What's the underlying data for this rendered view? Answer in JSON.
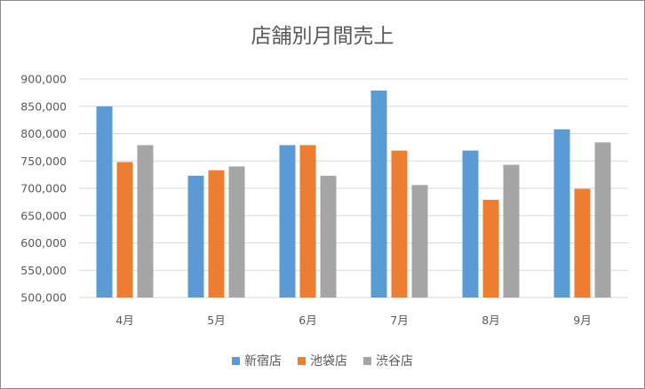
{
  "chart_data": {
    "type": "bar",
    "title": "店舗別月間売上",
    "xlabel": "",
    "ylabel": "",
    "categories": [
      "4月",
      "5月",
      "6月",
      "7月",
      "8月",
      "9月"
    ],
    "series": [
      {
        "name": "新宿店",
        "color": "#5b9bd5",
        "values": [
          850000,
          723000,
          779000,
          879000,
          769000,
          808000
        ]
      },
      {
        "name": "池袋店",
        "color": "#ed7d31",
        "values": [
          748000,
          733000,
          779000,
          769000,
          679000,
          699000
        ]
      },
      {
        "name": "渋谷店",
        "color": "#a5a5a5",
        "values": [
          779000,
          740000,
          723000,
          706000,
          743000,
          784000
        ]
      }
    ],
    "ylim": [
      500000,
      900000
    ],
    "yticks": [
      500000,
      550000,
      600000,
      650000,
      700000,
      750000,
      800000,
      850000,
      900000
    ],
    "ytick_labels": [
      "500,000",
      "550,000",
      "600,000",
      "650,000",
      "700,000",
      "750,000",
      "800,000",
      "850,000",
      "900,000"
    ],
    "grid": true,
    "legend_position": "bottom"
  }
}
